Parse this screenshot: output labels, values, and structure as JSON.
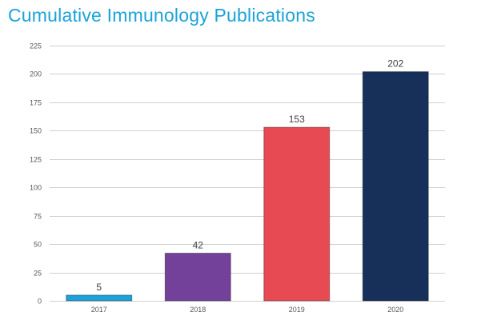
{
  "chart_data": {
    "type": "bar",
    "title": "Cumulative Immunology Publications",
    "categories": [
      "2017",
      "2018",
      "2019",
      "2020"
    ],
    "values": [
      5,
      42,
      153,
      202
    ],
    "data_labels": [
      "5",
      "42",
      "153",
      "202"
    ],
    "bar_colors": [
      "#1ba1dc",
      "#74419a",
      "#e84a53",
      "#16305a"
    ],
    "ylim": [
      0,
      225
    ],
    "yticks": [
      0,
      25,
      50,
      75,
      100,
      125,
      150,
      175,
      200,
      225
    ],
    "ytick_labels": [
      "0",
      "25",
      "50",
      "75",
      "100",
      "125",
      "150",
      "175",
      "200",
      "225"
    ],
    "grid": true,
    "legend": "none",
    "xlabel": "",
    "ylabel": ""
  },
  "colors": {
    "title": "#1aa3d8",
    "grid": "#d0d0d0",
    "axis_text": "#595959"
  }
}
